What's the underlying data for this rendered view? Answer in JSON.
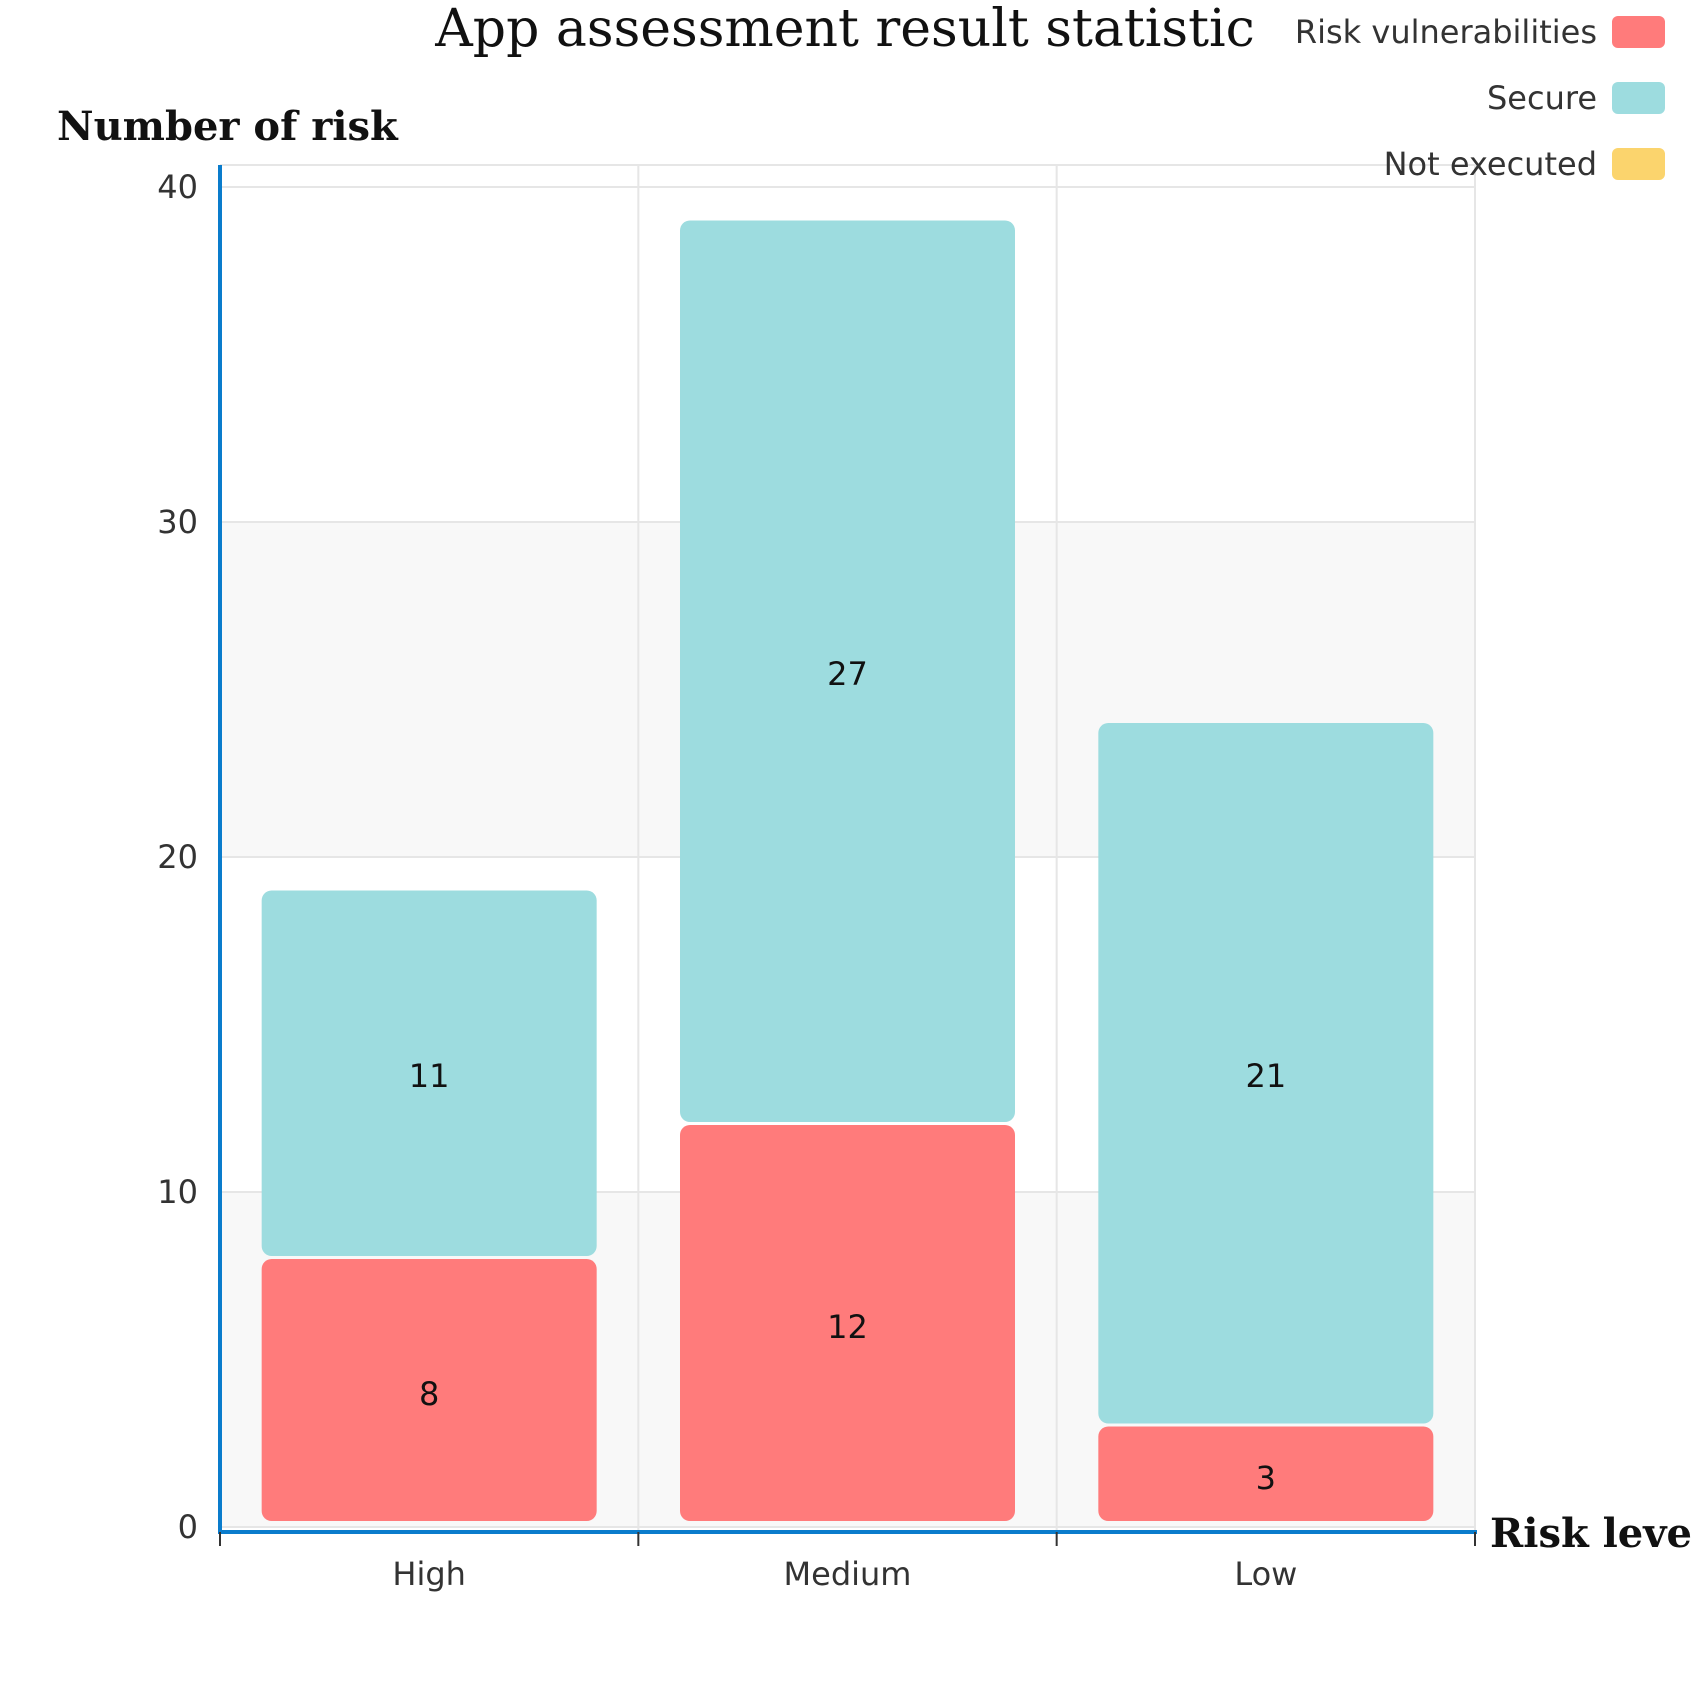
{
  "colors": {
    "axis": "#0a7ccc",
    "grid": "#e6e6e6",
    "band": "#f8f8f8",
    "text": "#333333"
  },
  "chart_data": {
    "type": "bar",
    "stacked": true,
    "title": "App assessment result statistic",
    "xlabel": "Risk level",
    "ylabel": "Number of risk",
    "categories": [
      "High",
      "Medium",
      "Low"
    ],
    "series": [
      {
        "name": "Risk vulnerabilities",
        "color": "#ff7b7b",
        "values": [
          8,
          12,
          3
        ]
      },
      {
        "name": "Secure",
        "color": "#9ddcdf",
        "values": [
          11,
          27,
          21
        ]
      },
      {
        "name": "Not executed",
        "color": "#fbd46d",
        "values": [
          0,
          0,
          0
        ]
      }
    ],
    "ylim": [
      0,
      40
    ],
    "yticks": [
      0,
      10,
      20,
      30,
      40
    ],
    "grid": true,
    "legend_position": "top-right"
  }
}
